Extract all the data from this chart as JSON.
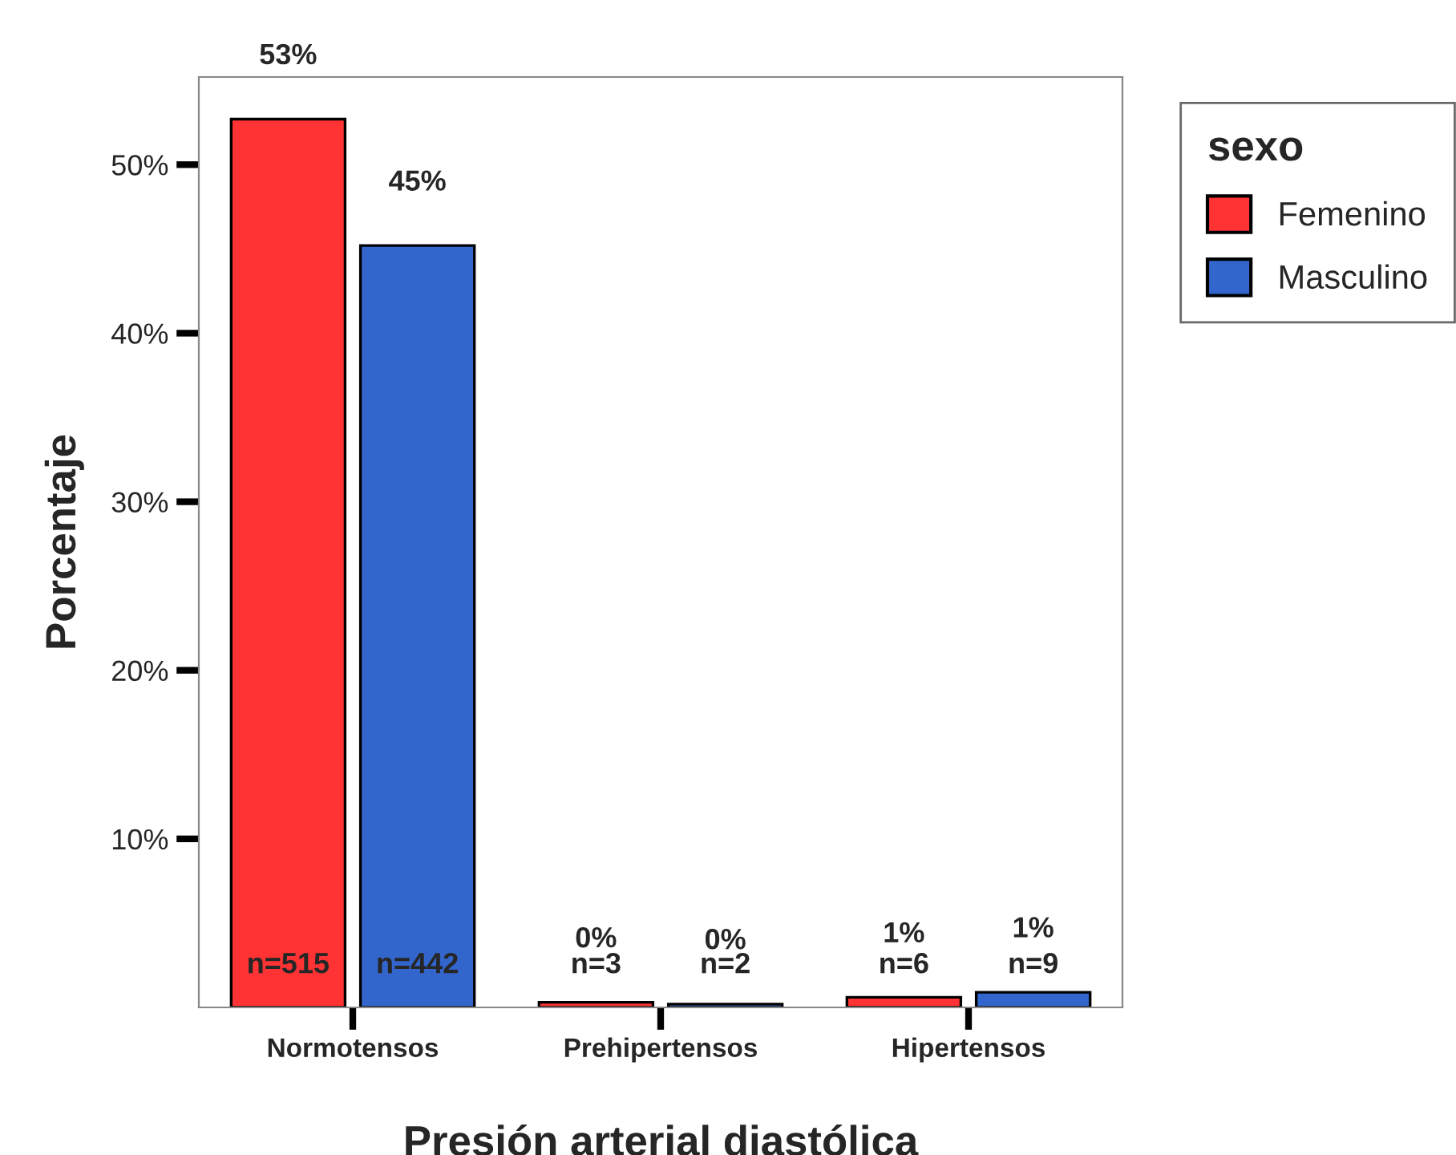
{
  "chart_data": {
    "type": "bar",
    "xlabel": "Presión arterial diastólica",
    "ylabel": "Porcentaje",
    "legend_title": "sexo",
    "categories": [
      "Normotensos",
      "Prehipertensos",
      "Hipertensos"
    ],
    "series": [
      {
        "name": "Femenino",
        "color": "#ff3333",
        "values": [
          52.7,
          0.3,
          0.6
        ],
        "value_labels": [
          "53%",
          "0%",
          "1%"
        ]
      },
      {
        "name": "Masculino",
        "color": "#3366cc",
        "values": [
          45.2,
          0.2,
          0.9
        ],
        "value_labels": [
          "45%",
          "0%",
          "1%"
        ]
      }
    ],
    "annotations": [
      "n=515",
      "n=442",
      "n=3",
      "n=2",
      "n=6",
      "n=9"
    ],
    "ylim": [
      0,
      55.2
    ],
    "yticks": [
      {
        "value": 10,
        "label": "10%"
      },
      {
        "value": 20,
        "label": "20%"
      },
      {
        "value": 30,
        "label": "30%"
      },
      {
        "value": 40,
        "label": "40%"
      },
      {
        "value": 50,
        "label": "50%"
      }
    ],
    "grid": false,
    "legend": "right"
  }
}
